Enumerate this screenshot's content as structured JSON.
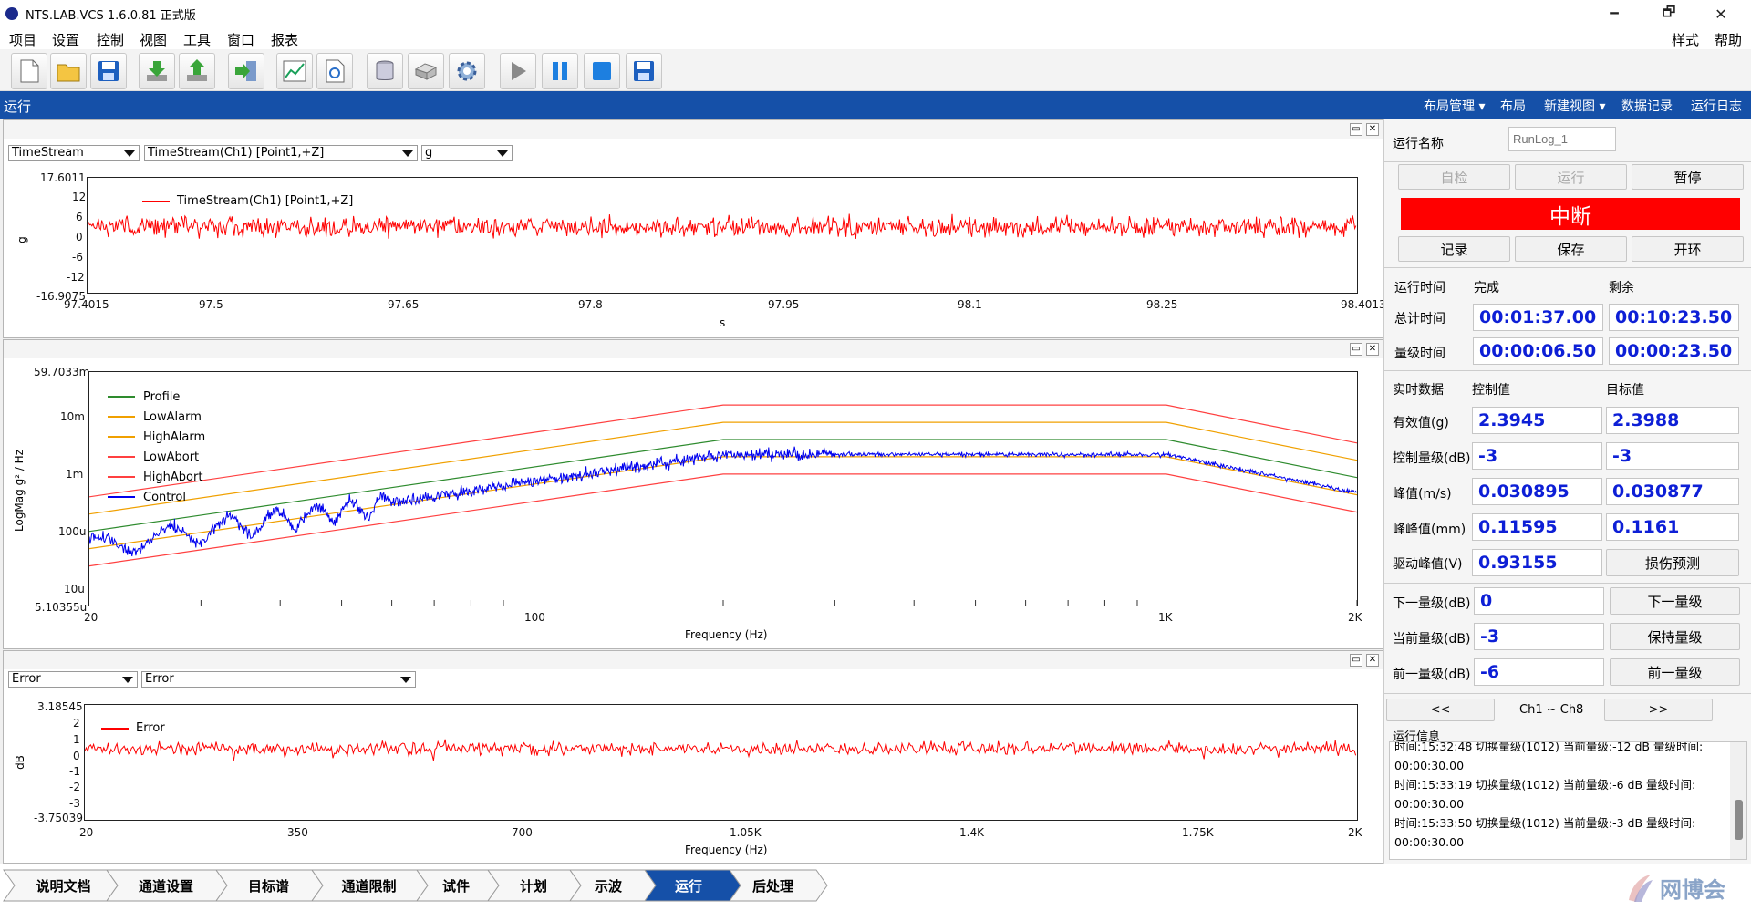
{
  "app": {
    "title": "NTS.LAB.VCS 1.6.0.81 正式版",
    "minimize": "🗕",
    "maximize": "🗗",
    "close": "✕"
  },
  "menu": {
    "items": [
      "项目",
      "设置",
      "控制",
      "视图",
      "工具",
      "窗口",
      "报表"
    ],
    "right": [
      "样式",
      "帮助"
    ]
  },
  "toolbar": {
    "icons": [
      "new-file-icon",
      "open-folder-icon",
      "save-icon",
      "download-icon",
      "upload-icon",
      "export-icon",
      "chart-icon",
      "settings-doc-icon",
      "database-icon",
      "device-icon",
      "gear-icon",
      "play-icon",
      "pause-icon",
      "stop-icon",
      "save-run-icon"
    ]
  },
  "band": {
    "label": "运行",
    "items": [
      "布局管理 ▾",
      "布局",
      "新建视图 ▾",
      "数据记录",
      "运行日志"
    ]
  },
  "panel1": {
    "selects": [
      "TimeStream",
      "TimeStream(Ch1) [Point1,+Z]",
      "g"
    ],
    "ylabel": "g",
    "xlabel": "s",
    "yticks": [
      "17.6011",
      "12",
      "6",
      "0",
      "-6",
      "-12",
      "-16.9075"
    ],
    "xticks": [
      "97.4015",
      "97.5",
      "97.65",
      "97.8",
      "97.95",
      "98.1",
      "98.25",
      "98.4013"
    ],
    "legend": "TimeStream(Ch1) [Point1,+Z]"
  },
  "panel2": {
    "ylabel": "LogMag g² / Hz",
    "xlabel": "Frequency (Hz)",
    "yticks": [
      "59.7033m",
      "10m",
      "1m",
      "100u",
      "10u",
      "5.10355u"
    ],
    "xticks": [
      "20",
      "100",
      "1K",
      "2K"
    ],
    "legend": [
      "Profile",
      "LowAlarm",
      "HighAlarm",
      "LowAbort",
      "HighAbort",
      "Control"
    ]
  },
  "panel3": {
    "selects": [
      "Error",
      "Error"
    ],
    "ylabel": "dB",
    "xlabel": "Frequency (Hz)",
    "yticks": [
      "3.18545",
      "2",
      "1",
      "0",
      "-1",
      "-2",
      "-3",
      "-3.75039"
    ],
    "xticks": [
      "20",
      "350",
      "700",
      "1.05K",
      "1.4K",
      "1.75K",
      "2K"
    ],
    "legend": "Error"
  },
  "colors": {
    "red": "#ff0000",
    "green": "#2e8b2e",
    "orange": "#f0a000",
    "blue": "#0000ee",
    "abort": "#ff4040"
  },
  "right": {
    "run_name_label": "运行名称",
    "run_name_placeholder": "RunLog_1",
    "btn_selfcheck": "自检",
    "btn_run": "运行",
    "btn_pause": "暂停",
    "big_status": "中断",
    "btn_record": "记录",
    "btn_save": "保存",
    "btn_openloop": "开环",
    "time_hdr": [
      "运行时间",
      "完成",
      "剩余"
    ],
    "total_label": "总计时间",
    "total_done": "00:01:37.00",
    "total_remain": "00:10:23.50",
    "level_label": "量级时间",
    "level_done": "00:00:06.50",
    "level_remain": "00:00:23.50",
    "rt_hdr": [
      "实时数据",
      "控制值",
      "目标值"
    ],
    "rows": [
      {
        "label": "有效值(g)",
        "ctrl": "2.3945",
        "target": "2.3988"
      },
      {
        "label": "控制量级(dB)",
        "ctrl": "-3",
        "target": "-3"
      },
      {
        "label": "峰值(m/s)",
        "ctrl": "0.030895",
        "target": "0.030877"
      },
      {
        "label": "峰峰值(mm)",
        "ctrl": "0.11595",
        "target": "0.1161"
      }
    ],
    "drive_label": "驱动峰值(V)",
    "drive_val": "0.93155",
    "btn_damage": "损伤预测",
    "next_label": "下一量级(dB)",
    "next_val": "0",
    "btn_next": "下一量级",
    "cur_label": "当前量级(dB)",
    "cur_val": "-3",
    "btn_hold": "保持量级",
    "prev_label": "前一量级(dB)",
    "prev_val": "-6",
    "btn_prev": "前一量级",
    "nav_prev": "<<",
    "nav_label": "Ch1 ~ Ch8",
    "nav_next": ">>",
    "log_label": "运行信息",
    "log": [
      "时间:15:32:48 切换量级(1012) 当前量级:-12 dB 量级时间:",
      "00:00:30.00",
      "时间:15:33:19 切换量级(1012) 当前量级:-6 dB 量级时间:",
      "00:00:30.00",
      "时间:15:33:50 切换量级(1012) 当前量级:-3 dB 量级时间:",
      "00:00:30.00"
    ]
  },
  "tabs": [
    "说明文档",
    "通道设置",
    "目标谱",
    "通道限制",
    "试件",
    "计划",
    "示波",
    "运行",
    "后处理"
  ],
  "active_tab": "运行",
  "watermark": "网博会"
}
